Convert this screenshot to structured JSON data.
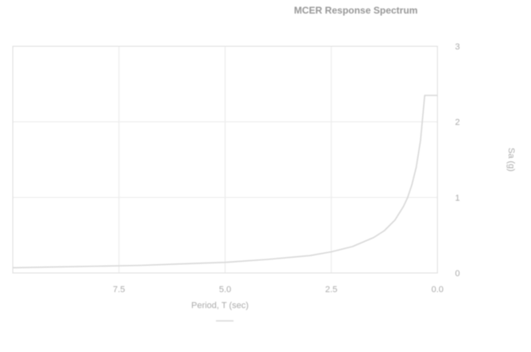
{
  "chart_data": {
    "type": "line",
    "title": "MCER Response Spectrum",
    "xlabel": "Period, T (sec)",
    "ylabel": "Sa (g)",
    "xlim": [
      0,
      10
    ],
    "ylim": [
      0,
      3
    ],
    "x_ticks": [
      "0.0",
      "2.5",
      "5.0",
      "7.5"
    ],
    "y_ticks": [
      "0",
      "1",
      "2",
      "3"
    ],
    "grid": true,
    "mirrored": true,
    "legend": {
      "position": "bottom",
      "entries": [
        ""
      ]
    },
    "series": [
      {
        "color": "#c8c8c8",
        "x": [
          0.0,
          0.1,
          0.2,
          0.3,
          0.4,
          0.5,
          0.6,
          0.7,
          0.8,
          1.0,
          1.25,
          1.5,
          2.0,
          2.5,
          3.0,
          4.0,
          5.0,
          6.0,
          7.0,
          8.0,
          9.0,
          10.0
        ],
        "values": [
          2.35,
          2.35,
          2.35,
          2.35,
          1.75,
          1.4,
          1.17,
          1.0,
          0.88,
          0.7,
          0.56,
          0.47,
          0.35,
          0.28,
          0.23,
          0.18,
          0.14,
          0.12,
          0.1,
          0.09,
          0.08,
          0.07
        ]
      }
    ]
  },
  "colors": {
    "grid": "#e2e2e2",
    "axis": "#cfcfcf",
    "text": "#8a8a8a",
    "series": "#c8c8c8"
  }
}
